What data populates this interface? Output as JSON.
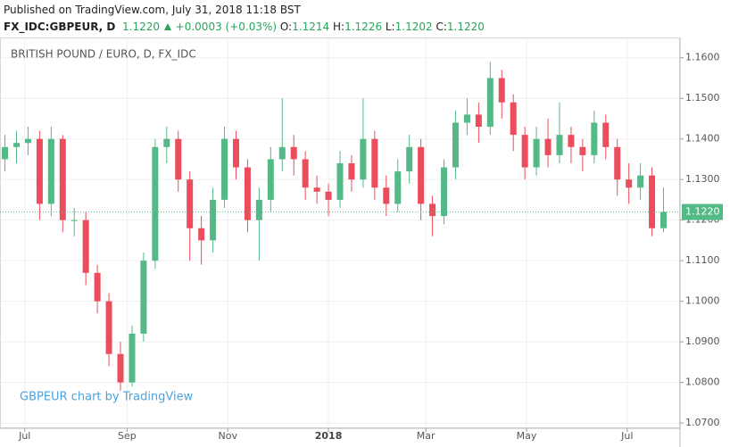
{
  "header": {
    "published": "Published on TradingView.com, July 31, 2018 11:18 BST",
    "symbol": "FX_IDC:GBPEUR, D",
    "last": "1.1220",
    "change": "+0.0003 (+0.03%)",
    "ohlc": [
      {
        "label": "O:",
        "value": "1.1214"
      },
      {
        "label": "H:",
        "value": "1.1226"
      },
      {
        "label": "L:",
        "value": "1.1202"
      },
      {
        "label": "C:",
        "value": "1.1220"
      }
    ]
  },
  "chart_data": {
    "type": "candlestick",
    "title": "BRITISH POUND / EURO, D, FX_IDC",
    "watermark": "GBPEUR chart by TradingView",
    "up_color": "#53b987",
    "down_color": "#eb4d5c",
    "grid": true,
    "x": [
      -12,
      -5,
      2,
      9,
      16,
      23,
      30,
      37,
      44,
      51,
      58,
      65,
      72,
      79,
      86,
      93,
      100,
      107,
      114,
      121,
      128,
      135,
      142,
      149,
      156,
      163,
      170,
      177,
      184,
      191,
      198,
      205,
      212,
      219,
      226,
      233,
      240,
      247,
      254,
      261,
      268,
      275,
      282,
      289,
      296,
      303,
      310,
      317,
      324,
      331,
      338,
      345,
      352,
      359,
      366,
      373,
      380,
      387
    ],
    "open": [
      1.135,
      1.138,
      1.139,
      1.14,
      1.124,
      1.14,
      1.12,
      1.12,
      1.107,
      1.1,
      1.087,
      1.08,
      1.092,
      1.11,
      1.138,
      1.14,
      1.13,
      1.118,
      1.115,
      1.125,
      1.14,
      1.133,
      1.12,
      1.125,
      1.135,
      1.138,
      1.135,
      1.128,
      1.127,
      1.125,
      1.134,
      1.13,
      1.14,
      1.128,
      1.124,
      1.132,
      1.138,
      1.124,
      1.121,
      1.133,
      1.144,
      1.146,
      1.143,
      1.155,
      1.149,
      1.141,
      1.133,
      1.14,
      1.136,
      1.141,
      1.138,
      1.136,
      1.144,
      1.138,
      1.13,
      1.128,
      1.131,
      1.118
    ],
    "high": [
      1.141,
      1.142,
      1.143,
      1.142,
      1.143,
      1.141,
      1.123,
      1.122,
      1.109,
      1.102,
      1.09,
      1.094,
      1.112,
      1.14,
      1.143,
      1.142,
      1.132,
      1.121,
      1.128,
      1.143,
      1.142,
      1.135,
      1.128,
      1.138,
      1.15,
      1.141,
      1.137,
      1.131,
      1.129,
      1.137,
      1.136,
      1.15,
      1.142,
      1.131,
      1.135,
      1.141,
      1.14,
      1.126,
      1.135,
      1.147,
      1.15,
      1.149,
      1.159,
      1.157,
      1.151,
      1.143,
      1.143,
      1.145,
      1.149,
      1.143,
      1.14,
      1.147,
      1.146,
      1.14,
      1.134,
      1.134,
      1.133,
      1.128
    ],
    "low": [
      1.132,
      1.134,
      1.136,
      1.12,
      1.121,
      1.117,
      1.116,
      1.104,
      1.097,
      1.084,
      1.078,
      1.079,
      1.09,
      1.108,
      1.134,
      1.127,
      1.11,
      1.109,
      1.112,
      1.123,
      1.13,
      1.117,
      1.11,
      1.122,
      1.132,
      1.131,
      1.125,
      1.124,
      1.121,
      1.123,
      1.127,
      1.128,
      1.125,
      1.121,
      1.122,
      1.129,
      1.12,
      1.116,
      1.119,
      1.13,
      1.141,
      1.139,
      1.141,
      1.145,
      1.137,
      1.13,
      1.131,
      1.133,
      1.134,
      1.134,
      1.132,
      1.134,
      1.135,
      1.126,
      1.124,
      1.125,
      1.116,
      1.117
    ],
    "close": [
      1.138,
      1.139,
      1.14,
      1.124,
      1.14,
      1.12,
      1.12,
      1.107,
      1.1,
      1.087,
      1.08,
      1.092,
      1.11,
      1.138,
      1.14,
      1.13,
      1.118,
      1.115,
      1.125,
      1.14,
      1.133,
      1.12,
      1.125,
      1.135,
      1.138,
      1.135,
      1.128,
      1.127,
      1.125,
      1.134,
      1.13,
      1.14,
      1.128,
      1.124,
      1.132,
      1.138,
      1.124,
      1.121,
      1.133,
      1.144,
      1.146,
      1.143,
      1.155,
      1.149,
      1.141,
      1.133,
      1.14,
      1.136,
      1.141,
      1.138,
      1.136,
      1.144,
      1.138,
      1.13,
      1.128,
      1.131,
      1.118,
      1.122
    ],
    "xlim": [
      -15,
      397
    ],
    "xticks": [
      {
        "value": 0,
        "label": "Jul"
      },
      {
        "value": 62,
        "label": "Sep"
      },
      {
        "value": 123,
        "label": "Nov"
      },
      {
        "value": 184,
        "label": "2018"
      },
      {
        "value": 243,
        "label": "Mar"
      },
      {
        "value": 304,
        "label": "May"
      },
      {
        "value": 365,
        "label": "Jul"
      }
    ],
    "ylim": [
      1.0687,
      1.165
    ],
    "yticks": [
      {
        "value": 1.07,
        "label": "1.0700"
      },
      {
        "value": 1.08,
        "label": "1.0800"
      },
      {
        "value": 1.09,
        "label": "1.0900"
      },
      {
        "value": 1.1,
        "label": "1.1000"
      },
      {
        "value": 1.11,
        "label": "1.1100"
      },
      {
        "value": 1.12,
        "label": "1.1200"
      },
      {
        "value": 1.13,
        "label": "1.1300"
      },
      {
        "value": 1.14,
        "label": "1.1400"
      },
      {
        "value": 1.15,
        "label": "1.1500"
      },
      {
        "value": 1.16,
        "label": "1.1600"
      }
    ],
    "last_price": {
      "value": 1.122,
      "label": "1.1220"
    }
  }
}
